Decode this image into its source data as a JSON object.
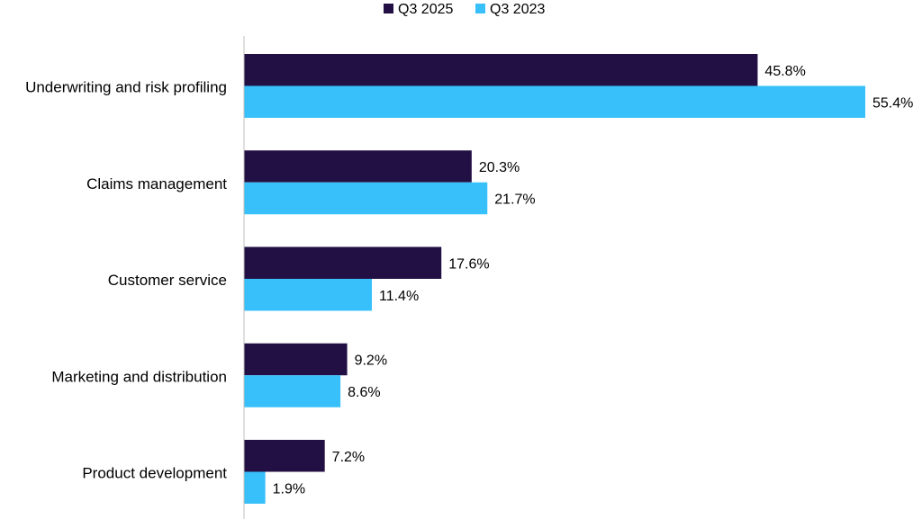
{
  "chart_data": {
    "type": "bar",
    "orientation": "horizontal",
    "categories": [
      "Underwriting and risk profiling",
      "Claims management",
      "Customer service",
      "Marketing and distribution",
      "Product development"
    ],
    "series": [
      {
        "name": "Q3 2025",
        "color": "#221044",
        "values": [
          45.8,
          20.3,
          17.6,
          9.2,
          7.2
        ],
        "labels": [
          "45.8%",
          "20.3%",
          "17.6%",
          "9.2%",
          "7.2%"
        ]
      },
      {
        "name": "Q3 2023",
        "color": "#38c0fb",
        "values": [
          55.4,
          21.7,
          11.4,
          8.6,
          1.9
        ],
        "labels": [
          "55.4%",
          "21.7%",
          "11.4%",
          "8.6%",
          "1.9%"
        ]
      }
    ],
    "xlim": [
      0,
      60
    ],
    "grid": false,
    "legend_position": "top-center",
    "axis_color": "#bfbfbf"
  }
}
